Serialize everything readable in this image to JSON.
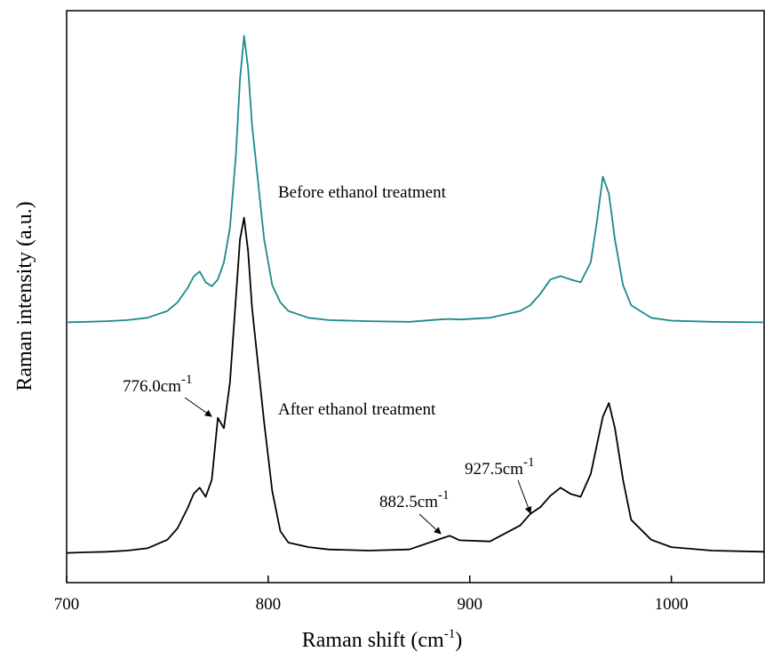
{
  "chart_data": {
    "type": "line",
    "xlabel": {
      "main": "Raman shift (cm",
      "sup": "-1",
      "end": ")"
    },
    "ylabel": "Raman intensity (a.u.)",
    "xlim": [
      700,
      1046
    ],
    "xticks": [
      700,
      800,
      900,
      1000
    ],
    "ylim": [
      0,
      100
    ],
    "x": [
      700,
      710,
      720,
      730,
      740,
      750,
      755,
      760,
      763,
      766,
      769,
      772,
      775,
      778,
      781,
      784,
      786,
      788,
      790,
      792,
      795,
      798,
      802,
      806,
      810,
      820,
      830,
      850,
      870,
      885,
      890,
      895,
      910,
      925,
      930,
      935,
      940,
      945,
      950,
      955,
      960,
      963,
      966,
      969,
      972,
      976,
      980,
      990,
      1000,
      1020,
      1046
    ],
    "series": [
      {
        "name": "Before ethanol treatment",
        "color": "#1a8a8a",
        "values": [
          45.5,
          45.6,
          45.7,
          45.9,
          46.3,
          47.5,
          49,
          51.5,
          53.5,
          54.4,
          52.5,
          51.8,
          53,
          56,
          62,
          75,
          88,
          95.6,
          90,
          80,
          70,
          60,
          52,
          49,
          47.5,
          46.3,
          45.9,
          45.7,
          45.6,
          46,
          46.1,
          46,
          46.3,
          47.5,
          48.5,
          50.5,
          53,
          53.6,
          53,
          52.5,
          56,
          63,
          71,
          68,
          60,
          52,
          48.5,
          46.3,
          45.8,
          45.6,
          45.5
        ]
      },
      {
        "name": "After ethanol treatment",
        "color": "#000000",
        "values": [
          5.2,
          5.3,
          5.4,
          5.6,
          6,
          7.5,
          9.5,
          13,
          15.5,
          16.6,
          15,
          18,
          28.8,
          27,
          35,
          50,
          60,
          63.8,
          58,
          48,
          38,
          28,
          16,
          9,
          7,
          6.2,
          5.8,
          5.6,
          5.8,
          7.6,
          8.2,
          7.4,
          7.2,
          10,
          12,
          13.2,
          15.2,
          16.6,
          15.5,
          15,
          19,
          24,
          29,
          31.4,
          27,
          18,
          11,
          7.5,
          6.2,
          5.6,
          5.4
        ]
      }
    ],
    "annotations": [
      {
        "text": "776.0cm",
        "sup": "-1"
      },
      {
        "text": "882.5cm",
        "sup": "-1"
      },
      {
        "text": "927.5cm",
        "sup": "-1"
      }
    ]
  }
}
